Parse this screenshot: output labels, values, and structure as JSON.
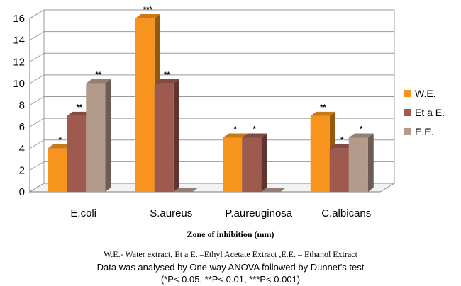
{
  "chart_data": {
    "type": "bar",
    "categories": [
      "E.coli",
      "S.aureus",
      "P.aureuginosa",
      "C.albicans"
    ],
    "series": [
      {
        "name": "W.E.",
        "values": [
          4,
          16,
          5,
          7
        ],
        "color": "#F7941D",
        "significance": [
          "*",
          "***",
          "*",
          "**"
        ]
      },
      {
        "name": "Et a E.",
        "values": [
          7,
          10,
          5,
          4
        ],
        "color": "#9E5A4E",
        "significance": [
          "**",
          "**",
          "*",
          "*"
        ]
      },
      {
        "name": "E.E.",
        "values": [
          10,
          0,
          0,
          5
        ],
        "color": "#B39B8C",
        "significance": [
          "**",
          "",
          "",
          "*"
        ]
      }
    ],
    "yticks": [
      "0",
      "2",
      "4",
      "6",
      "8",
      "10",
      "12",
      "14",
      "16"
    ],
    "ylim": [
      0,
      16
    ],
    "grid": true,
    "legend_position": "right",
    "xlabel": "Zone of inhibition (mm)"
  },
  "footnotes": {
    "abbreviations": "W.E.- Water extract,   Et a E. –Ethyl Acetate  Extract ,E.E. – Ethanol Extract",
    "method": "Data was analysed by One way ANOVA followed by Dunnet’s test",
    "pvalues": "(*P< 0.05, **P< 0.01, ***P< 0.001)"
  }
}
